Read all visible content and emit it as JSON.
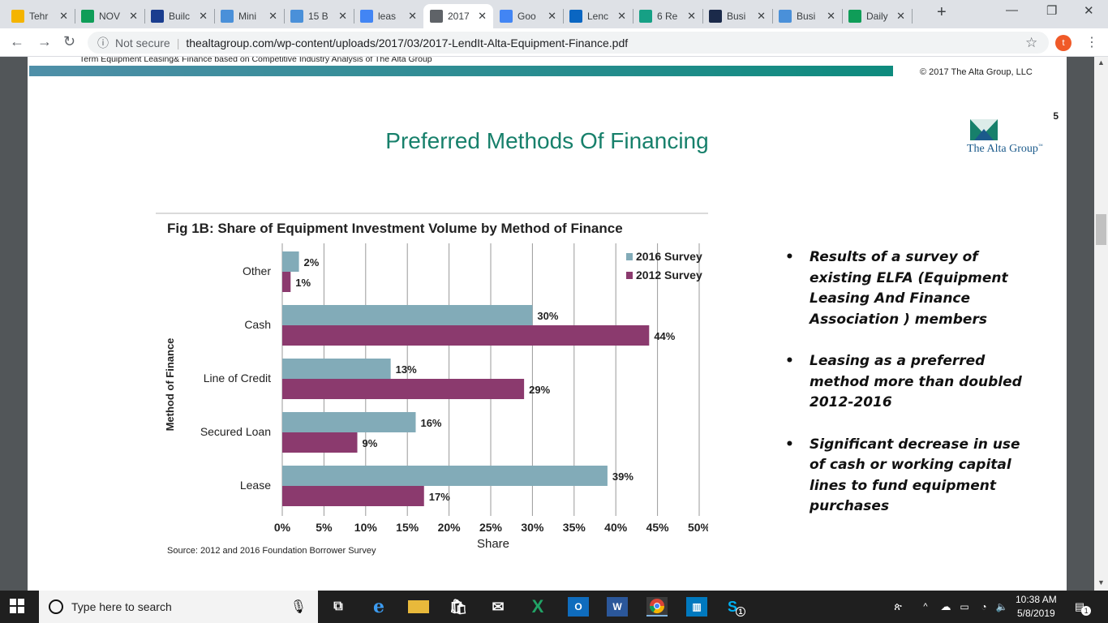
{
  "browser": {
    "tabs": [
      {
        "label": "Tehr",
        "icon": "google-drive-icon",
        "color": "#f4b400"
      },
      {
        "label": "NOV",
        "icon": "sheets-icon",
        "color": "#0f9d58"
      },
      {
        "label": "Builc",
        "icon": "vu-icon",
        "color": "#1a3d8f"
      },
      {
        "label": "Mini",
        "icon": "pin-icon",
        "color": "#4a90d9"
      },
      {
        "label": "15 B",
        "icon": "pin-icon",
        "color": "#4a90d9"
      },
      {
        "label": "leas",
        "icon": "google-icon",
        "color": "#4285f4"
      },
      {
        "label": "2017",
        "icon": "globe-icon",
        "color": "#5f6368",
        "active": true
      },
      {
        "label": "Goo",
        "icon": "google-icon",
        "color": "#4285f4"
      },
      {
        "label": "Lenc",
        "icon": "linkedin-icon",
        "color": "#0a66c2"
      },
      {
        "label": "6 Re",
        "icon": "green-doc-icon",
        "color": "#16a085"
      },
      {
        "label": "Busi",
        "icon": "n-icon",
        "color": "#1b2a4a"
      },
      {
        "label": "Busi",
        "icon": "grid-icon",
        "color": "#4a90d9"
      },
      {
        "label": "Daily",
        "icon": "sheets-icon",
        "color": "#0f9d58"
      }
    ],
    "security": "Not secure",
    "url": "thealtagroup.com/wp-content/uploads/2017/03/2017-LendIt-Alta-Equipment-Finance.pdf",
    "profile_initial": "t"
  },
  "pdf": {
    "prev_page": {
      "title": "Term Equipment Leasing& Finance based on Competitive Industry Analysis of The Alta Group",
      "copyright": "© 2017 The Alta Group, LLC"
    },
    "page": {
      "number": "5",
      "title": "Preferred Methods Of Financing",
      "logo_text": "The Alta Group",
      "logo_mark": "™",
      "bullets": [
        "Results of a survey of existing ELFA (Equipment Leasing And Finance Association ) members",
        "Leasing as a preferred method more than doubled 2012-2016",
        "Significant decrease in use of cash or working capital lines to fund equipment purchases"
      ]
    }
  },
  "chart_data": {
    "type": "bar",
    "orientation": "horizontal",
    "title": "Fig 1B: Share of Equipment Investment Volume by Method of Finance",
    "xlabel": "Share",
    "ylabel": "Method of Finance",
    "categories": [
      "Other",
      "Cash",
      "Line of Credit",
      "Secured Loan",
      "Lease"
    ],
    "series": [
      {
        "name": "2016 Survey",
        "values": [
          2,
          30,
          13,
          16,
          39
        ],
        "labels": [
          "2%",
          "30%",
          "13%",
          "16%",
          "39%"
        ],
        "color": "#82abb8"
      },
      {
        "name": "2012 Survey",
        "values": [
          1,
          44,
          29,
          9,
          17
        ],
        "labels": [
          "1%",
          "44%",
          "29%",
          "9%",
          "17%"
        ],
        "color": "#8b3a6e"
      }
    ],
    "xlim": [
      0,
      50
    ],
    "xticks": [
      "0%",
      "5%",
      "10%",
      "15%",
      "20%",
      "25%",
      "30%",
      "35%",
      "40%",
      "45%",
      "50%"
    ],
    "source": "Source: 2012 and 2016 Foundation Borrower Survey",
    "grid": true,
    "legend": "top-right"
  },
  "taskbar": {
    "search_placeholder": "Type here to search",
    "time": "10:38 AM",
    "date": "5/8/2019",
    "notifications": "1",
    "skype_badge": "1"
  }
}
